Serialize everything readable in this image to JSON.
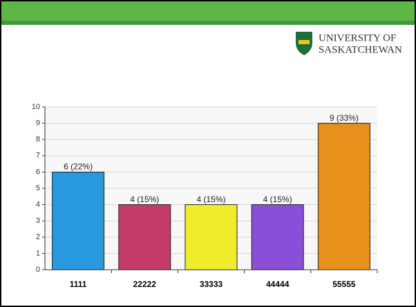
{
  "logo": {
    "line1": "UNIVERSITY OF",
    "line2": "SASKATCHEWAN"
  },
  "chart_data": {
    "type": "bar",
    "categories": [
      "1111",
      "22222",
      "33333",
      "44444",
      "55555"
    ],
    "values": [
      6,
      4,
      4,
      4,
      9
    ],
    "value_labels": [
      "6 (22%)",
      "4 (15%)",
      "4 (15%)",
      "4 (15%)",
      "9 (33%)"
    ],
    "colors": [
      "#2899df",
      "#c63a69",
      "#f0ec2c",
      "#8a4fd6",
      "#e8901c"
    ],
    "ylim": [
      0,
      10
    ],
    "yticks": [
      0,
      1,
      2,
      3,
      4,
      5,
      6,
      7,
      8,
      9,
      10
    ],
    "grid": true
  }
}
